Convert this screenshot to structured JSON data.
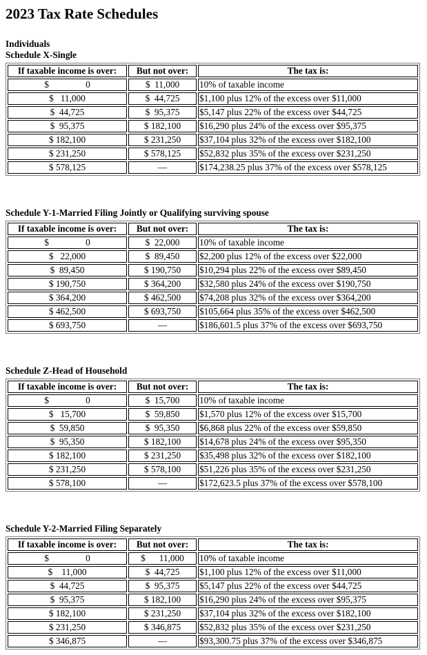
{
  "page": {
    "title": "2023 Tax Rate Schedules",
    "group_heading": "Individuals"
  },
  "columns": {
    "over": "If taxable income is over:",
    "not_over": "But not over:",
    "tax": "The tax is:"
  },
  "schedules": [
    {
      "heading": "Schedule X-Single",
      "rows": [
        [
          "$                0",
          "$  11,000",
          "10% of taxable income"
        ],
        [
          "$   11,000",
          "$  44,725",
          "$1,100 plus 12% of the excess over $11,000"
        ],
        [
          "$  44,725",
          "$  95,375",
          "$5,147 plus 22% of the excess over $44,725"
        ],
        [
          "$  95,375",
          "$ 182,100",
          "$16,290 plus 24% of the excess over $95,375"
        ],
        [
          "$ 182,100",
          "$ 231,250",
          "$37,104 plus 32% of the excess over $182,100"
        ],
        [
          "$ 231,250",
          "$ 578,125",
          "$52,832 plus 35% of the excess over $231,250"
        ],
        [
          "$ 578,125",
          "—",
          "$174,238.25 plus 37% of the excess over $578,125"
        ]
      ]
    },
    {
      "heading": "Schedule Y-1-Married Filing Jointly or Qualifying surviving spouse",
      "rows": [
        [
          "$                0",
          "$  22,000",
          "10% of taxable income"
        ],
        [
          "$   22,000",
          "$  89,450",
          "$2,200 plus 12% of the excess over $22,000"
        ],
        [
          "$  89,450",
          "$ 190,750",
          "$10,294 plus 22% of the excess over $89,450"
        ],
        [
          "$ 190,750",
          "$ 364,200",
          "$32,580 plus 24% of the excess over $190,750"
        ],
        [
          "$ 364,200",
          "$ 462,500",
          "$74,208 plus 32% of the excess over $364,200"
        ],
        [
          "$ 462,500",
          "$ 693,750",
          "$105,664 plus 35% of the excess over $462,500"
        ],
        [
          "$ 693,750",
          "—",
          "$186,601.5 plus 37% of the excess over $693,750"
        ]
      ]
    },
    {
      "heading": "Schedule Z-Head of Household",
      "rows": [
        [
          "$                0",
          "$  15,700",
          "10% of taxable income"
        ],
        [
          "$   15,700",
          "$  59,850",
          "$1,570 plus 12% of the excess over $15,700"
        ],
        [
          "$  59,850",
          "$  95,350",
          "$6,868 plus 22% of the excess over $59,850"
        ],
        [
          "$  95,350",
          "$ 182,100",
          "$14,678 plus 24% of the excess over $95,350"
        ],
        [
          "$ 182,100",
          "$ 231,250",
          "$35,498 plus 32% of the excess over $182,100"
        ],
        [
          "$ 231,250",
          "$ 578,100",
          "$51,226 plus 35% of the excess over $231,250"
        ],
        [
          "$ 578,100",
          "—",
          "$172,623.5 plus 37% of the excess over $578,100"
        ]
      ]
    },
    {
      "heading": "Schedule Y-2-Married Filing Separately",
      "rows": [
        [
          "$                0",
          "$      11,000",
          "10% of taxable income"
        ],
        [
          "$    11,000",
          "$  44,725",
          "$1,100 plus 12% of the excess over $11,000"
        ],
        [
          "$  44,725",
          "$  95,375",
          "$5,147 plus 22% of the excess over $44,725"
        ],
        [
          "$  95,375",
          "$ 182,100",
          "$16,290 plus 24% of the excess over $95,375"
        ],
        [
          "$ 182,100",
          "$ 231,250",
          "$37,104 plus 32% of the excess over $182,100"
        ],
        [
          "$ 231,250",
          "$ 346,875",
          "$52,832 plus 35% of the excess over $231,250"
        ],
        [
          "$ 346,875",
          "—",
          "$93,300.75 plus 37% of the excess over $346,875"
        ]
      ]
    }
  ]
}
